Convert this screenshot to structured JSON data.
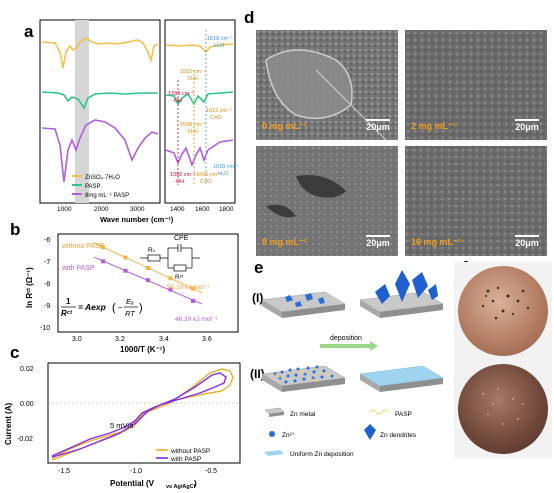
{
  "panel_labels": [
    "a",
    "b",
    "c",
    "d",
    "e",
    "f"
  ],
  "panel_a": {
    "xlabel": "Wave number (cm⁻¹)",
    "xticks_left": [
      "1000",
      "2000",
      "3000"
    ],
    "xticks_right": [
      "1400",
      "1600",
      "1800"
    ],
    "legend": [
      "ZnSO₄·7H₂O",
      "PASP",
      "8mg mL⁻¹ PASP"
    ],
    "colors": {
      "znso4": "#f5c04a",
      "pasp": "#2ec48a",
      "pasp8": "#b05de0",
      "red": "#c8102e",
      "orange": "#e08a00",
      "blue": "#3a9ad9"
    },
    "annotations": {
      "h2o_top": "1618 cm⁻¹",
      "h2o_top_sub": "H₂O",
      "nh_top": "1512 cm⁻¹",
      "nh_top_sub": "N-H",
      "oh_top": "1398 cm⁻¹",
      "oh_top_sub": "-OH",
      "co_top": "1612 cm⁻¹",
      "co_top_sub": "C=O",
      "nh_bot": "1508 cm⁻¹",
      "nh_bot_sub": "N-H",
      "oh_bot": "1392 cm⁻¹",
      "oh_bot_sub": "-OH",
      "co_bot": "1600 cm⁻¹",
      "co_bot_sub": "C=O",
      "h2o_bot": "1618 cm⁻¹",
      "h2o_bot_sub": "H₂O"
    }
  },
  "panel_b": {
    "xlabel": "1000/T (K⁻¹)",
    "ylabel": "ln Rᶜᵗ (Ω⁻¹)",
    "xticks": [
      "3.0",
      "3.2",
      "3.4",
      "3.6"
    ],
    "yticks": [
      "-6",
      "-7",
      "-8",
      "-9",
      "-10"
    ],
    "series_without": "without PASP",
    "series_with": "with PASP",
    "ea_without": "50.19 kJ mol⁻¹",
    "ea_with": "46.30 kJ mol⁻¹",
    "circuit": {
      "cpe": "CPE",
      "rs": "Rₛ",
      "rct": "Rᶜᵗ"
    },
    "equation": {
      "lhs_num": "1",
      "lhs_den": "Rᶜᵗ",
      "rhs": "= Aexp",
      "frac_num": "Eₐ",
      "frac_den": "RT"
    }
  },
  "chart_data": [
    {
      "type": "scatter",
      "title": "",
      "xlabel": "1000/T (K⁻¹)",
      "ylabel": "ln R_ct (Ω⁻¹)",
      "xlim": [
        2.9,
        3.7
      ],
      "ylim": [
        -10.5,
        -5.3
      ],
      "series": [
        {
          "name": "without PASP",
          "color": "#f5b04a",
          "x": [
            3.1,
            3.2,
            3.3,
            3.4,
            3.5
          ],
          "y": [
            -6.0,
            -6.55,
            -7.1,
            -7.65,
            -8.2
          ]
        },
        {
          "name": "with PASP",
          "color": "#b05de0",
          "x": [
            3.1,
            3.2,
            3.3,
            3.4,
            3.5
          ],
          "y": [
            -6.75,
            -7.25,
            -7.75,
            -8.25,
            -8.85
          ]
        }
      ]
    },
    {
      "type": "line",
      "title": "",
      "xlabel": "Potential (V vs Ag/AgCl)",
      "ylabel": "Current (A)",
      "xlim": [
        -1.7,
        -0.35
      ],
      "ylim": [
        -0.032,
        0.024
      ],
      "annotation": "5 mV/s",
      "series": [
        {
          "name": "without PASP",
          "color": "#e8b02a"
        },
        {
          "name": "with PASP",
          "color": "#8a2be2"
        }
      ]
    }
  ],
  "panel_c": {
    "xlabel_main": "Potential (V",
    "xlabel_sub": "vs Ag/AgCl",
    "xlabel_end": ")",
    "ylabel": "Current (A)",
    "xticks": [
      "-1.5",
      "-1.0",
      "-0.5"
    ],
    "yticks": [
      "0.02",
      "0.00",
      "-0.02"
    ],
    "scan_rate": "5 mV/s",
    "legend": [
      "without PASP",
      "with PASP"
    ]
  },
  "panel_d": {
    "images": [
      {
        "conc": "0 mg mL⁻¹",
        "scale": "20μm"
      },
      {
        "conc": "2 mg mL⁻¹",
        "scale": "20μm"
      },
      {
        "conc": "8 mg mL⁻¹",
        "scale": "20μm"
      },
      {
        "conc": "16 mg mL⁻¹",
        "scale": "20μm"
      }
    ]
  },
  "panel_e": {
    "row1": "(I)",
    "row2": "(II)",
    "arrow_label": "deposition",
    "legend": {
      "zn_metal": "Zn metal",
      "pasp": "PASP",
      "zn2": "Zn²⁺",
      "dendrites": "Zn dendrites",
      "uniform": "Uniform Zn deposition"
    }
  }
}
